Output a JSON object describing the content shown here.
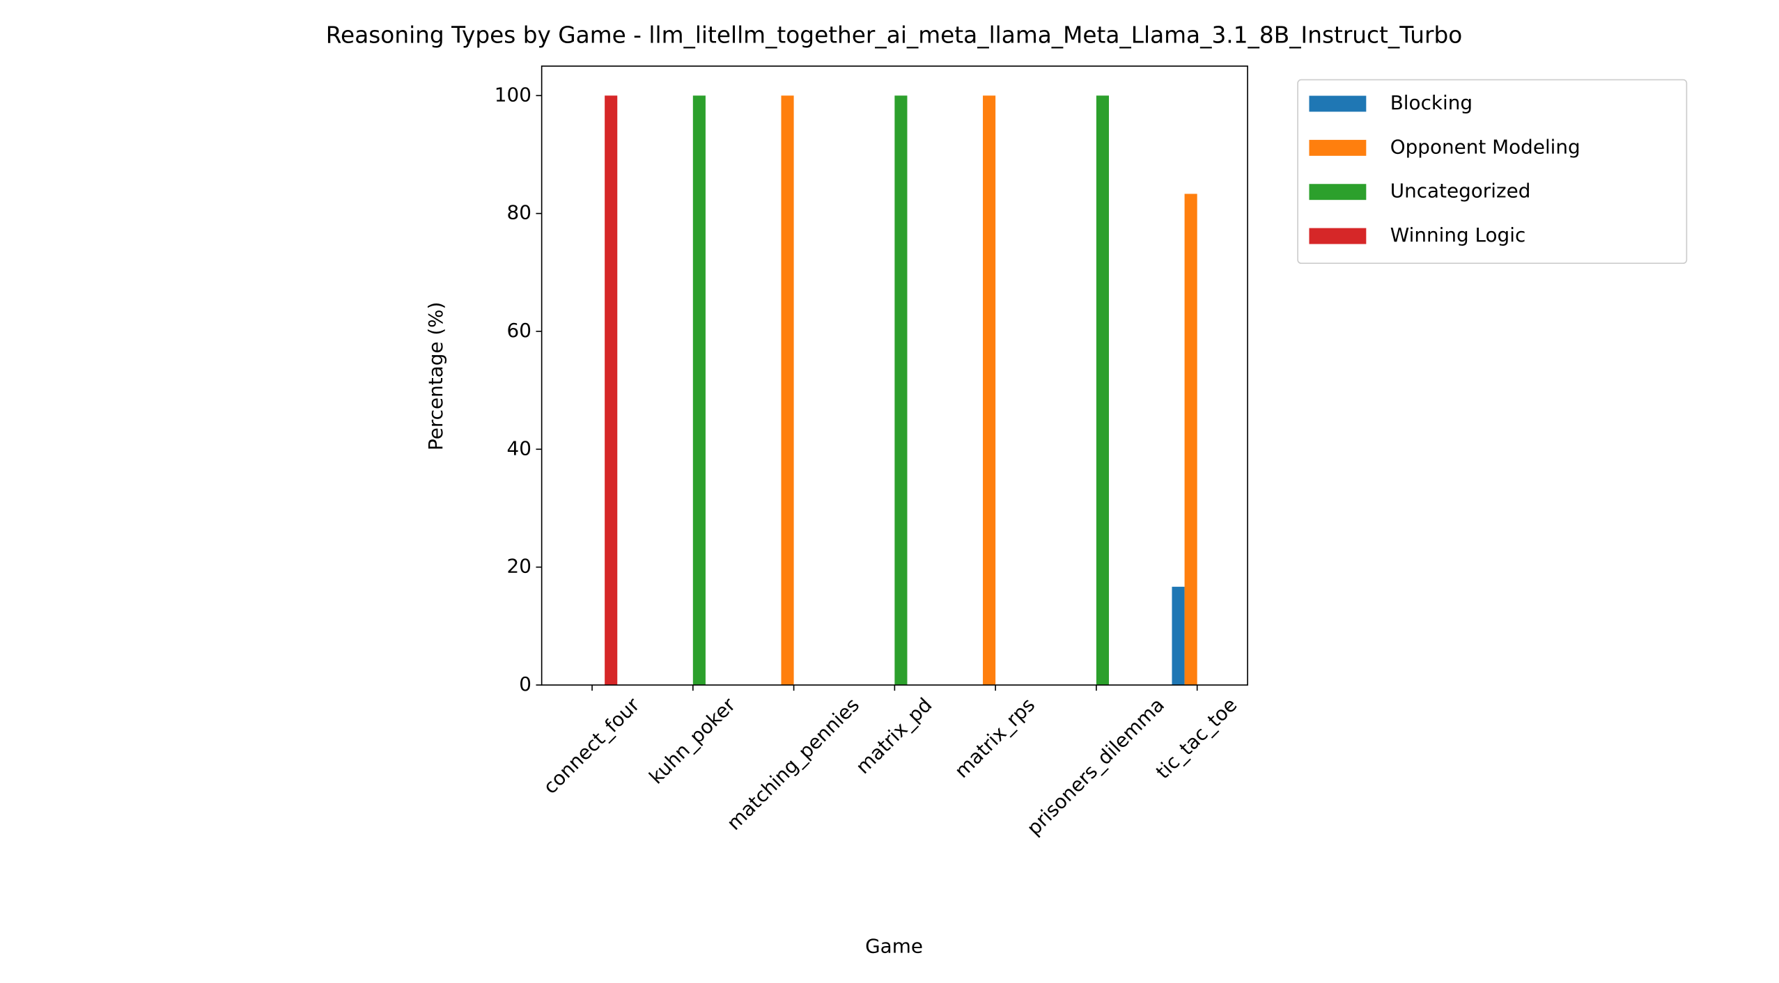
{
  "chart_data": {
    "type": "bar",
    "title": "Reasoning Types by Game - llm_litellm_together_ai_meta_llama_Meta_Llama_3.1_8B_Instruct_Turbo",
    "x_label": "Game",
    "y_label": "Percentage (%)",
    "categories": [
      "connect_four",
      "kuhn_poker",
      "matching_pennies",
      "matrix_pd",
      "matrix_rps",
      "prisoners_dilemma",
      "tic_tac_toe"
    ],
    "series": [
      {
        "name": "Blocking",
        "color": "#1f77b4",
        "values": [
          0,
          0,
          0,
          0,
          0,
          0,
          16.67
        ]
      },
      {
        "name": "Opponent Modeling",
        "color": "#ff7f0e",
        "values": [
          0,
          0,
          100,
          0,
          100,
          0,
          83.33
        ]
      },
      {
        "name": "Uncategorized",
        "color": "#2ca02c",
        "values": [
          0,
          100,
          0,
          100,
          0,
          100,
          0
        ]
      },
      {
        "name": "Winning Logic",
        "color": "#d62728",
        "values": [
          100,
          0,
          0,
          0,
          0,
          0,
          0
        ]
      }
    ],
    "ylim": [
      0,
      105
    ],
    "yticks": [
      0,
      20,
      40,
      60,
      80,
      100
    ],
    "legend": "outside-upper-right"
  }
}
